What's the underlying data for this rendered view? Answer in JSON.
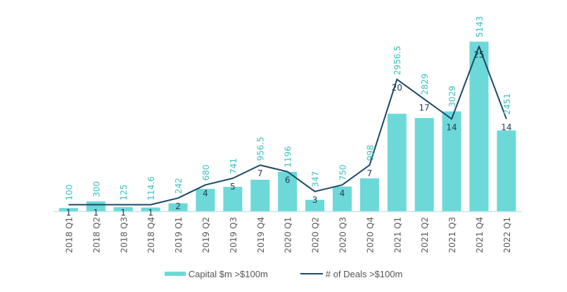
{
  "chart_data": {
    "type": "bar",
    "title": "",
    "xlabel": "",
    "ylabel": "",
    "categories": [
      "2018 Q1",
      "2018 Q2",
      "2018 Q3",
      "2018 Q4",
      "2019 Q1",
      "2019 Q2",
      "2019 Q3",
      "2019 Q4",
      "2020 Q1",
      "2020 Q2",
      "2020 Q3",
      "2020 Q4",
      "2021 Q1",
      "2021 Q2",
      "2021 Q3",
      "2021 Q4",
      "2022 Q1"
    ],
    "series": [
      {
        "name": "Capital $m >$100m",
        "type": "bar",
        "axis": "primary",
        "color": "#6dd8d8",
        "values": [
          100,
          300,
          125,
          114.6,
          242,
          680,
          741,
          956.5,
          1196,
          347,
          750,
          998,
          2956.5,
          2829,
          3029,
          5143,
          2451
        ],
        "labels": [
          "100",
          "300",
          "125",
          "114.6",
          "242",
          "680",
          "741",
          "956.5",
          "1196",
          "347",
          "750",
          "998",
          "2956.5",
          "2829",
          "3029",
          "5143",
          "2451"
        ]
      },
      {
        "name": "# of Deals >$100m",
        "type": "line",
        "axis": "secondary",
        "color": "#1c4868",
        "values": [
          1,
          1,
          1,
          1,
          2,
          4,
          5,
          7,
          6,
          3,
          4,
          7,
          20,
          17,
          14,
          25,
          14
        ],
        "labels": [
          "1",
          "1",
          "1",
          "1",
          "2",
          "4",
          "5",
          "7",
          "6",
          "3",
          "4",
          "7",
          "20",
          "17",
          "14",
          "25",
          "14"
        ]
      }
    ],
    "ylim": [
      0,
      5300
    ],
    "y2lim": [
      0,
      26.5
    ],
    "grid": false,
    "axes_visible": false,
    "legend": "bottom-center",
    "label_colors": {
      "capital_labels": "#3fc0c0",
      "deal_labels": "#1c3a55"
    }
  }
}
